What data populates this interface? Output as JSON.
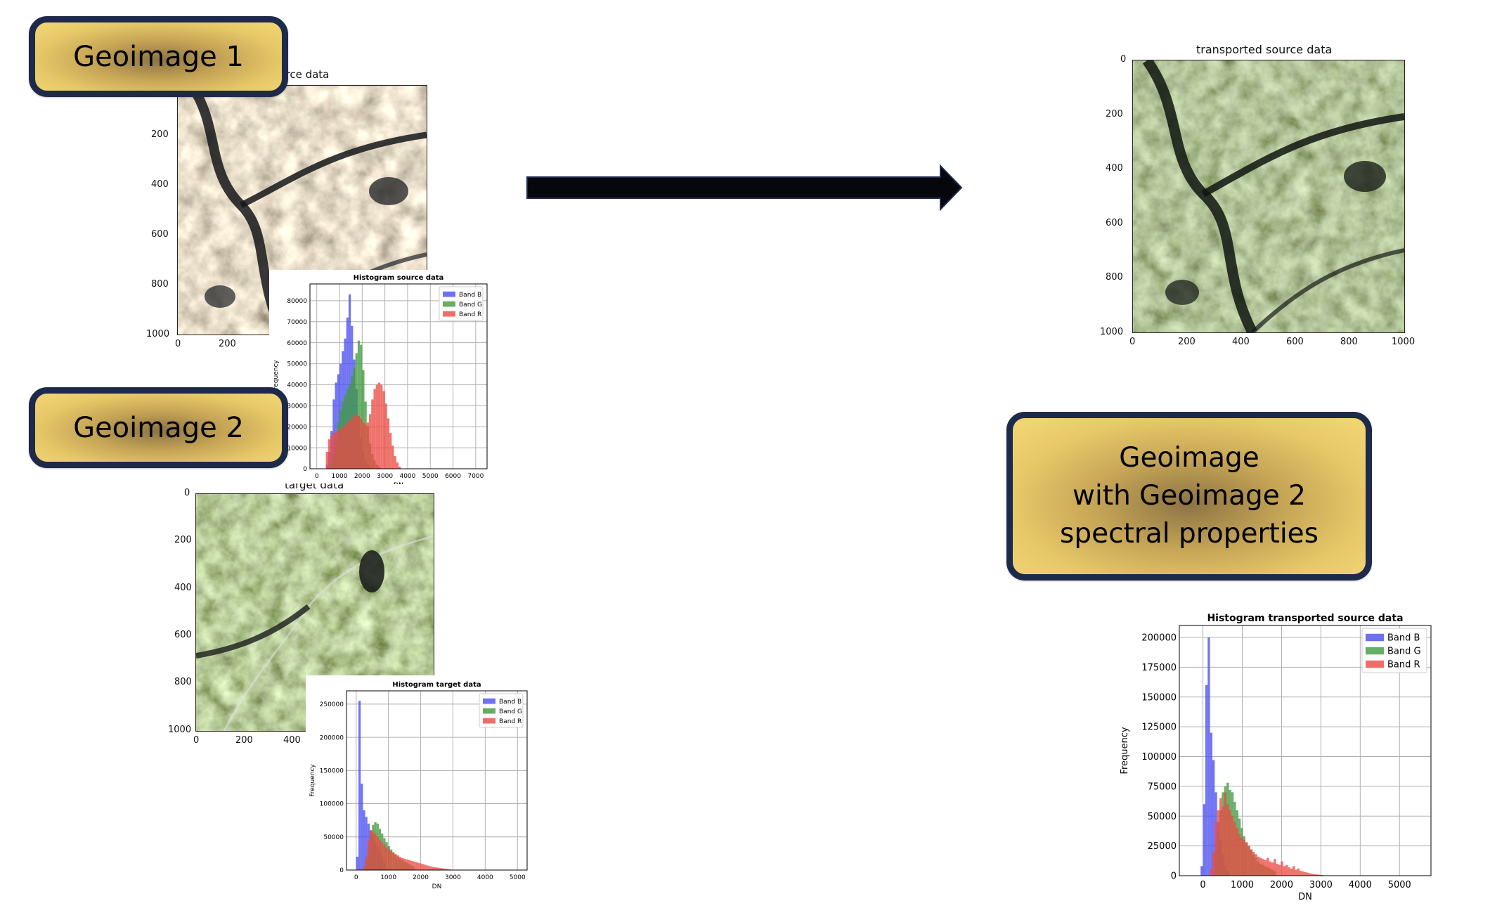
{
  "labels": {
    "geoimage1": "Geoimage 1",
    "geoimage2": "Geoimage 2",
    "result_line1": "Geoimage",
    "result_line2": "with Geoimage 2",
    "result_line3": "spectral properties"
  },
  "colors": {
    "box_fill": "#e9c96a",
    "box_border": "#1e2a4a",
    "arrow": "#05070d",
    "band_b": "#4a4ef0",
    "band_g": "#3f9a3f",
    "band_r": "#ea4a44"
  },
  "source_image": {
    "title": "source data",
    "y_ticks": [
      "200",
      "400",
      "600",
      "800",
      "1000"
    ],
    "x_ticks": [
      "0",
      "200"
    ]
  },
  "target_image": {
    "title": "target data",
    "y_ticks": [
      "0",
      "200",
      "400",
      "600",
      "800",
      "1000"
    ],
    "x_ticks": [
      "0",
      "200",
      "400"
    ]
  },
  "transported_image": {
    "title": "transported source data",
    "y_ticks": [
      "0",
      "200",
      "400",
      "600",
      "800",
      "1000"
    ],
    "x_ticks": [
      "0",
      "200",
      "400",
      "600",
      "800",
      "1000"
    ]
  },
  "arrow_icon": "right-arrow",
  "chart_data": [
    {
      "type": "bar",
      "title": "Histogram source data",
      "xlabel": "DN",
      "ylabel": "Frequency",
      "xlim": [
        -300,
        7500
      ],
      "ylim": [
        0,
        88000
      ],
      "x_ticks": [
        0,
        1000,
        2000,
        3000,
        4000,
        5000,
        6000,
        7000
      ],
      "y_ticks": [
        0,
        10000,
        20000,
        30000,
        40000,
        50000,
        60000,
        70000,
        80000
      ],
      "y_tick_labels": [
        "0",
        "10000",
        "20000",
        "30000",
        "40000",
        "50000",
        "60000",
        "70000",
        "80000"
      ],
      "bin_width": 100,
      "legend": "top-right",
      "series": [
        {
          "name": "Band B",
          "color": "#4a4ef0",
          "x": [
            400,
            500,
            600,
            700,
            800,
            900,
            1000,
            1100,
            1200,
            1300,
            1400,
            1500,
            1600,
            1700,
            1800,
            1900,
            2000,
            2100,
            2200,
            2300,
            2400
          ],
          "values": [
            2000,
            8000,
            18000,
            33000,
            41000,
            45000,
            50000,
            56000,
            62000,
            72000,
            83000,
            68000,
            52000,
            38000,
            25000,
            15000,
            8000,
            4000,
            2000,
            1000,
            500
          ]
        },
        {
          "name": "Band G",
          "color": "#3f9a3f",
          "x": [
            500,
            600,
            700,
            800,
            900,
            1000,
            1100,
            1200,
            1300,
            1400,
            1500,
            1600,
            1700,
            1800,
            1900,
            2000,
            2100,
            2200,
            2300,
            2400,
            2500,
            2600,
            2700
          ],
          "values": [
            1000,
            3000,
            7000,
            14000,
            22000,
            28000,
            32000,
            35000,
            38000,
            40000,
            44000,
            48000,
            55000,
            61000,
            59000,
            47000,
            32000,
            20000,
            12000,
            7000,
            4000,
            2000,
            1000
          ]
        },
        {
          "name": "Band R",
          "color": "#ea4a44",
          "x": [
            400,
            500,
            600,
            700,
            800,
            900,
            1000,
            1100,
            1200,
            1300,
            1400,
            1500,
            1600,
            1700,
            1800,
            1900,
            2000,
            2100,
            2200,
            2300,
            2400,
            2500,
            2600,
            2700,
            2800,
            2900,
            3000,
            3100,
            3200,
            3300,
            3400,
            3500,
            3600
          ],
          "values": [
            8000,
            14000,
            16000,
            17000,
            18000,
            18000,
            19000,
            20000,
            21000,
            22000,
            23000,
            24000,
            25000,
            26000,
            25000,
            24000,
            22000,
            21000,
            22000,
            26000,
            33000,
            38000,
            40000,
            41000,
            40000,
            37000,
            31000,
            24000,
            17000,
            11000,
            6000,
            3000,
            1000
          ]
        }
      ]
    },
    {
      "type": "bar",
      "title": "Histogram target data",
      "xlabel": "DN",
      "ylabel": "Frequency",
      "xlim": [
        -300,
        5300
      ],
      "ylim": [
        0,
        270000
      ],
      "x_ticks": [
        0,
        1000,
        2000,
        3000,
        4000,
        5000
      ],
      "y_ticks": [
        0,
        50000,
        100000,
        150000,
        200000,
        250000
      ],
      "y_tick_labels": [
        "0",
        "50000",
        "100000",
        "150000",
        "200000",
        "250000"
      ],
      "bin_width": 70,
      "legend": "top-right",
      "series": [
        {
          "name": "Band B",
          "color": "#4a4ef0",
          "x": [
            0,
            70,
            140,
            210,
            280,
            350,
            420,
            490,
            560,
            630,
            700,
            770,
            840
          ],
          "values": [
            20000,
            255000,
            130000,
            90000,
            80000,
            70000,
            60000,
            50000,
            42000,
            35000,
            28000,
            20000,
            12000
          ]
        },
        {
          "name": "Band G",
          "color": "#3f9a3f",
          "x": [
            280,
            350,
            420,
            490,
            560,
            630,
            700,
            770,
            840,
            910,
            980,
            1050,
            1120,
            1190,
            1260,
            1330,
            1400,
            1470,
            1540,
            1610,
            1680,
            1750
          ],
          "values": [
            15000,
            30000,
            55000,
            68000,
            72000,
            70000,
            62000,
            55000,
            48000,
            42000,
            36000,
            31000,
            27000,
            23000,
            20000,
            17000,
            15000,
            13000,
            11000,
            9000,
            7000,
            5000
          ]
        },
        {
          "name": "Band R",
          "color": "#ea4a44",
          "x": [
            210,
            280,
            350,
            420,
            490,
            560,
            630,
            700,
            770,
            840,
            910,
            980,
            1050,
            1120,
            1190,
            1260,
            1330,
            1400,
            1470,
            1540,
            1610,
            1680,
            1750,
            1820,
            1890,
            1960,
            2030,
            2100,
            2170,
            2240,
            2310,
            2380,
            2450,
            2520,
            2590,
            2660,
            2730,
            2800,
            2870
          ],
          "values": [
            5000,
            20000,
            45000,
            60000,
            58000,
            55000,
            50000,
            46000,
            42000,
            38000,
            34000,
            31000,
            28000,
            26000,
            24000,
            22000,
            20000,
            18000,
            17000,
            16000,
            15000,
            14000,
            13000,
            12000,
            11000,
            10000,
            9000,
            8000,
            7000,
            6000,
            5000,
            4500,
            4000,
            3500,
            3000,
            2500,
            2000,
            1500,
            1000
          ]
        }
      ]
    },
    {
      "type": "bar",
      "title": "Histogram transported source data",
      "xlabel": "DN",
      "ylabel": "Frequency",
      "xlim": [
        -600,
        5800
      ],
      "ylim": [
        0,
        210000
      ],
      "x_ticks": [
        0,
        1000,
        2000,
        3000,
        4000,
        5000
      ],
      "y_ticks": [
        0,
        25000,
        50000,
        75000,
        100000,
        125000,
        150000,
        175000,
        200000
      ],
      "y_tick_labels": [
        "0",
        "25000",
        "50000",
        "75000",
        "100000",
        "125000",
        "150000",
        "175000",
        "200000"
      ],
      "bin_width": 60,
      "legend": "top-right",
      "series": [
        {
          "name": "Band B",
          "color": "#4a4ef0",
          "x": [
            -60,
            0,
            60,
            120,
            180,
            240,
            300,
            360,
            420,
            480,
            540,
            600
          ],
          "values": [
            8000,
            60000,
            160000,
            200000,
            120000,
            97000,
            70000,
            45000,
            30000,
            18000,
            9000,
            4000
          ]
        },
        {
          "name": "Band G",
          "color": "#3f9a3f",
          "x": [
            300,
            360,
            420,
            480,
            540,
            600,
            660,
            720,
            780,
            840,
            900,
            960,
            1020,
            1080,
            1140,
            1200,
            1260,
            1320,
            1380,
            1440,
            1500,
            1560,
            1620,
            1680,
            1740,
            1800
          ],
          "values": [
            20000,
            35000,
            55000,
            70000,
            75000,
            78000,
            72000,
            70000,
            62000,
            55000,
            48000,
            40000,
            33000,
            28000,
            25000,
            22000,
            18000,
            15000,
            12000,
            10000,
            9000,
            8000,
            7000,
            6000,
            5000,
            4000
          ]
        },
        {
          "name": "Band R",
          "color": "#ea4a44",
          "x": [
            180,
            240,
            300,
            360,
            420,
            480,
            540,
            600,
            660,
            720,
            780,
            840,
            900,
            960,
            1020,
            1080,
            1140,
            1200,
            1260,
            1320,
            1380,
            1440,
            1500,
            1560,
            1620,
            1680,
            1740,
            1800,
            1860,
            1920,
            1980,
            2040,
            2100,
            2160,
            2220,
            2280,
            2340,
            2400,
            2460,
            2520,
            2580,
            2640,
            2700,
            2760,
            2820,
            2880,
            2940,
            3000
          ],
          "values": [
            5000,
            20000,
            45000,
            55000,
            65000,
            58000,
            70000,
            60000,
            55000,
            50000,
            45000,
            40000,
            35000,
            32000,
            30000,
            28000,
            25000,
            22000,
            20000,
            18000,
            16000,
            15000,
            14000,
            13000,
            15000,
            12000,
            11000,
            14000,
            10000,
            9000,
            12000,
            8000,
            9000,
            7000,
            6000,
            8000,
            5000,
            6000,
            4000,
            3500,
            3000,
            2500,
            2000,
            1500,
            1200,
            1000,
            800,
            600
          ]
        }
      ]
    }
  ]
}
